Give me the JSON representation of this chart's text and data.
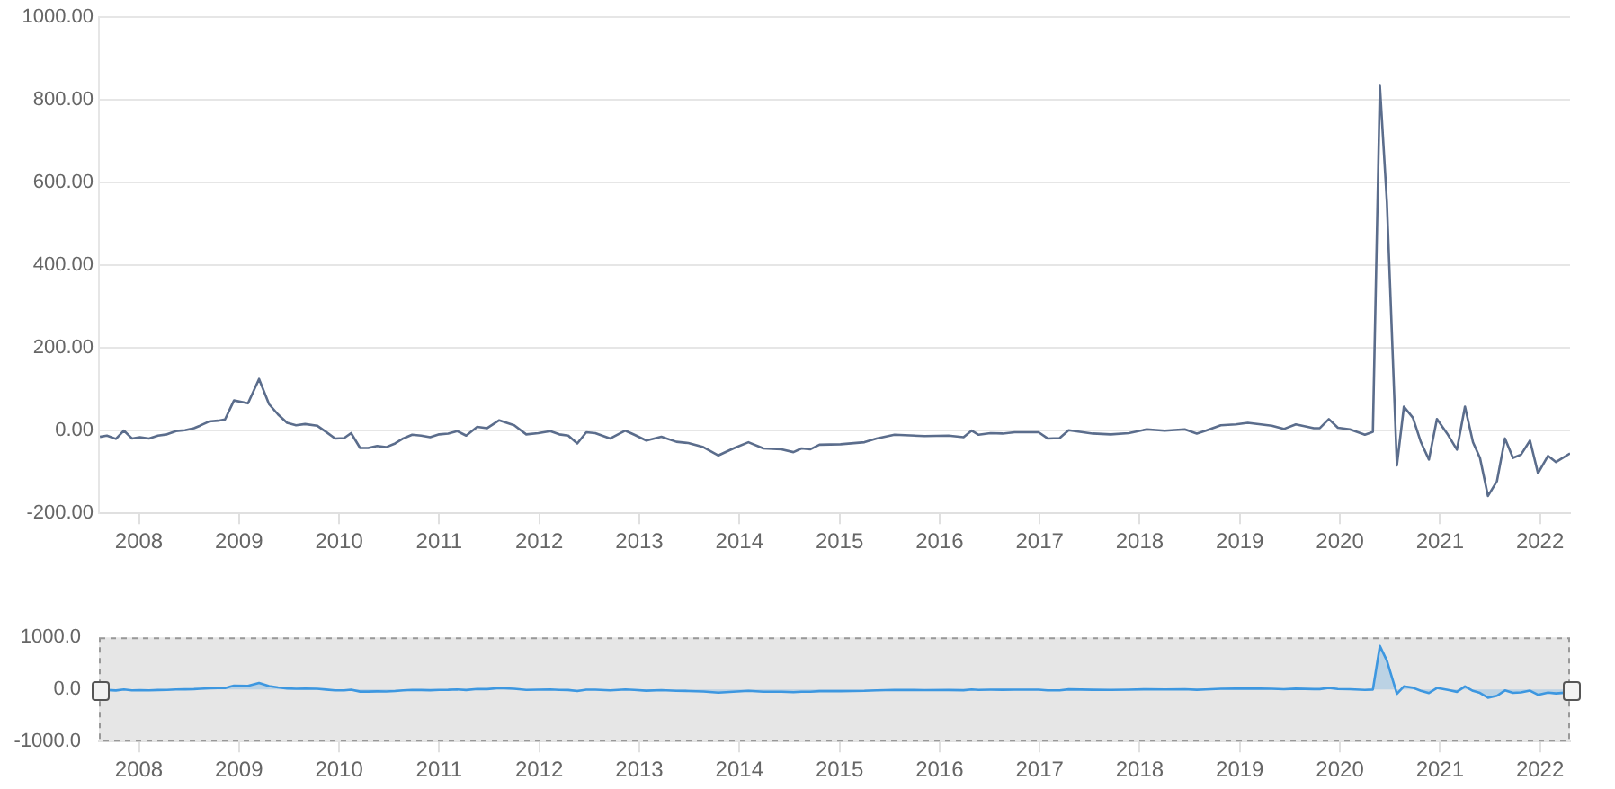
{
  "chart_data": [
    {
      "type": "line",
      "color": "#5b6d8c",
      "marker": "none",
      "grid": "y",
      "legend": false,
      "x": [
        2007.61,
        2007.68,
        2007.77,
        2007.85,
        2007.93,
        2008.01,
        2008.1,
        2008.19,
        2008.28,
        2008.37,
        2008.46,
        2008.55,
        2008.61,
        2008.7,
        2008.79,
        2008.86,
        2008.95,
        2009.09,
        2009.2,
        2009.3,
        2009.39,
        2009.48,
        2009.57,
        2009.66,
        2009.78,
        2009.87,
        2009.96,
        2010.05,
        2010.12,
        2010.21,
        2010.29,
        2010.38,
        2010.47,
        2010.56,
        2010.64,
        2010.73,
        2010.82,
        2010.91,
        2011.0,
        2011.09,
        2011.18,
        2011.27,
        2011.38,
        2011.48,
        2011.6,
        2011.75,
        2011.87,
        2011.99,
        2012.11,
        2012.2,
        2012.29,
        2012.38,
        2012.47,
        2012.56,
        2012.71,
        2012.86,
        2012.95,
        2013.07,
        2013.22,
        2013.37,
        2013.49,
        2013.64,
        2013.79,
        2013.94,
        2014.09,
        2014.24,
        2014.42,
        2014.54,
        2014.62,
        2014.71,
        2014.8,
        2015.01,
        2015.25,
        2015.37,
        2015.55,
        2015.85,
        2016.09,
        2016.24,
        2016.32,
        2016.39,
        2016.51,
        2016.63,
        2016.75,
        2016.99,
        2017.08,
        2017.2,
        2017.29,
        2017.53,
        2017.71,
        2017.89,
        2018.07,
        2018.25,
        2018.45,
        2018.57,
        2018.66,
        2018.81,
        2018.96,
        2019.08,
        2019.32,
        2019.44,
        2019.56,
        2019.74,
        2019.8,
        2019.89,
        2019.98,
        2020.1,
        2020.25,
        2020.33,
        2020.4,
        2020.47,
        2020.57,
        2020.64,
        2020.73,
        2020.81,
        2020.89,
        2020.97,
        2021.08,
        2021.17,
        2021.25,
        2021.33,
        2021.4,
        2021.48,
        2021.57,
        2021.65,
        2021.73,
        2021.81,
        2021.9,
        2021.98,
        2022.08,
        2022.16,
        2022.3
      ],
      "values": [
        -15,
        -12,
        -20,
        0,
        -19,
        -16,
        -19,
        -12,
        -9,
        -1,
        1,
        6,
        12,
        22,
        24,
        27,
        73,
        66,
        125,
        64,
        39,
        19,
        13,
        16,
        12,
        -3,
        -19,
        -18,
        -6,
        -42,
        -42,
        -37,
        -40,
        -31,
        -19,
        -10,
        -12,
        -16,
        -9,
        -7,
        -1,
        -12,
        9,
        6,
        25,
        13,
        -9,
        -6,
        -1,
        -9,
        -12,
        -31,
        -4,
        -6,
        -19,
        0,
        -10,
        -24,
        -15,
        -27,
        -30,
        -40,
        -60,
        -43,
        -28,
        -43,
        -45,
        -52,
        -43,
        -45,
        -34,
        -33,
        -28,
        -19,
        -10,
        -13,
        -12,
        -16,
        0,
        -10,
        -6,
        -7,
        -4,
        -4,
        -19,
        -18,
        1,
        -7,
        -9,
        -6,
        3,
        0,
        3,
        -7,
        0,
        13,
        15,
        19,
        12,
        4,
        15,
        6,
        6,
        28,
        7,
        3,
        -10,
        -3,
        834,
        553,
        -84,
        58,
        31,
        -28,
        -70,
        28,
        -10,
        -46,
        58,
        -28,
        -66,
        -158,
        -122,
        -19,
        -66,
        -58,
        -24,
        -103,
        -61,
        -76,
        -55
      ],
      "xlim": [
        2007.6,
        2022.3
      ],
      "xticks": [
        2008,
        2009,
        2010,
        2011,
        2012,
        2013,
        2014,
        2015,
        2016,
        2017,
        2018,
        2019,
        2020,
        2021,
        2022
      ],
      "ylim": [
        -200,
        1000
      ],
      "yticks": [
        {
          "value": -200,
          "label": "-200.00"
        },
        {
          "value": 0,
          "label": "0.00"
        },
        {
          "value": 200,
          "label": "200.00"
        },
        {
          "value": 400,
          "label": "400.00"
        },
        {
          "value": 600,
          "label": "600.00"
        },
        {
          "value": 800,
          "label": "800.00"
        },
        {
          "value": 1000,
          "label": "1000.00"
        }
      ]
    },
    {
      "type": "area",
      "color": "#3d97e0",
      "marker": "none",
      "grid": false,
      "legend": false,
      "x": [
        2007.61,
        2007.68,
        2007.77,
        2007.85,
        2007.93,
        2008.01,
        2008.1,
        2008.19,
        2008.28,
        2008.37,
        2008.46,
        2008.55,
        2008.61,
        2008.7,
        2008.79,
        2008.86,
        2008.95,
        2009.09,
        2009.2,
        2009.3,
        2009.39,
        2009.48,
        2009.57,
        2009.66,
        2009.78,
        2009.87,
        2009.96,
        2010.05,
        2010.12,
        2010.21,
        2010.29,
        2010.38,
        2010.47,
        2010.56,
        2010.64,
        2010.73,
        2010.82,
        2010.91,
        2011.0,
        2011.09,
        2011.18,
        2011.27,
        2011.38,
        2011.48,
        2011.6,
        2011.75,
        2011.87,
        2011.99,
        2012.11,
        2012.2,
        2012.29,
        2012.38,
        2012.47,
        2012.56,
        2012.71,
        2012.86,
        2012.95,
        2013.07,
        2013.22,
        2013.37,
        2013.49,
        2013.64,
        2013.79,
        2013.94,
        2014.09,
        2014.24,
        2014.42,
        2014.54,
        2014.62,
        2014.71,
        2014.8,
        2015.01,
        2015.25,
        2015.37,
        2015.55,
        2015.85,
        2016.09,
        2016.24,
        2016.32,
        2016.39,
        2016.51,
        2016.63,
        2016.75,
        2016.99,
        2017.08,
        2017.2,
        2017.29,
        2017.53,
        2017.71,
        2017.89,
        2018.07,
        2018.25,
        2018.45,
        2018.57,
        2018.66,
        2018.81,
        2018.96,
        2019.08,
        2019.32,
        2019.44,
        2019.56,
        2019.74,
        2019.8,
        2019.89,
        2019.98,
        2020.1,
        2020.25,
        2020.33,
        2020.4,
        2020.47,
        2020.57,
        2020.64,
        2020.73,
        2020.81,
        2020.89,
        2020.97,
        2021.08,
        2021.17,
        2021.25,
        2021.33,
        2021.4,
        2021.48,
        2021.57,
        2021.65,
        2021.73,
        2021.81,
        2021.9,
        2021.98,
        2022.08,
        2022.16,
        2022.3
      ],
      "values": [
        -15,
        -12,
        -20,
        0,
        -19,
        -16,
        -19,
        -12,
        -9,
        -1,
        1,
        6,
        12,
        22,
        24,
        27,
        73,
        66,
        125,
        64,
        39,
        19,
        13,
        16,
        12,
        -3,
        -19,
        -18,
        -6,
        -42,
        -42,
        -37,
        -40,
        -31,
        -19,
        -10,
        -12,
        -16,
        -9,
        -7,
        -1,
        -12,
        9,
        6,
        25,
        13,
        -9,
        -6,
        -1,
        -9,
        -12,
        -31,
        -4,
        -6,
        -19,
        0,
        -10,
        -24,
        -15,
        -27,
        -30,
        -40,
        -60,
        -43,
        -28,
        -43,
        -45,
        -52,
        -43,
        -45,
        -34,
        -33,
        -28,
        -19,
        -10,
        -13,
        -12,
        -16,
        0,
        -10,
        -6,
        -7,
        -4,
        -4,
        -19,
        -18,
        1,
        -7,
        -9,
        -6,
        3,
        0,
        3,
        -7,
        0,
        13,
        15,
        19,
        12,
        4,
        15,
        6,
        6,
        28,
        7,
        3,
        -10,
        -3,
        834,
        553,
        -84,
        58,
        31,
        -28,
        -70,
        28,
        -10,
        -46,
        58,
        -28,
        -66,
        -158,
        -122,
        -19,
        -66,
        -58,
        -24,
        -103,
        -61,
        -76,
        -55
      ],
      "xlim": [
        2007.6,
        2022.3
      ],
      "xticks": [
        2008,
        2009,
        2010,
        2011,
        2012,
        2013,
        2014,
        2015,
        2016,
        2017,
        2018,
        2019,
        2020,
        2021,
        2022
      ],
      "ylim": [
        -1000,
        1000
      ],
      "yticks": [
        {
          "value": -1000,
          "label": "-1000.0"
        },
        {
          "value": 0,
          "label": "0.0"
        },
        {
          "value": 1000,
          "label": "1000.0"
        }
      ]
    }
  ]
}
